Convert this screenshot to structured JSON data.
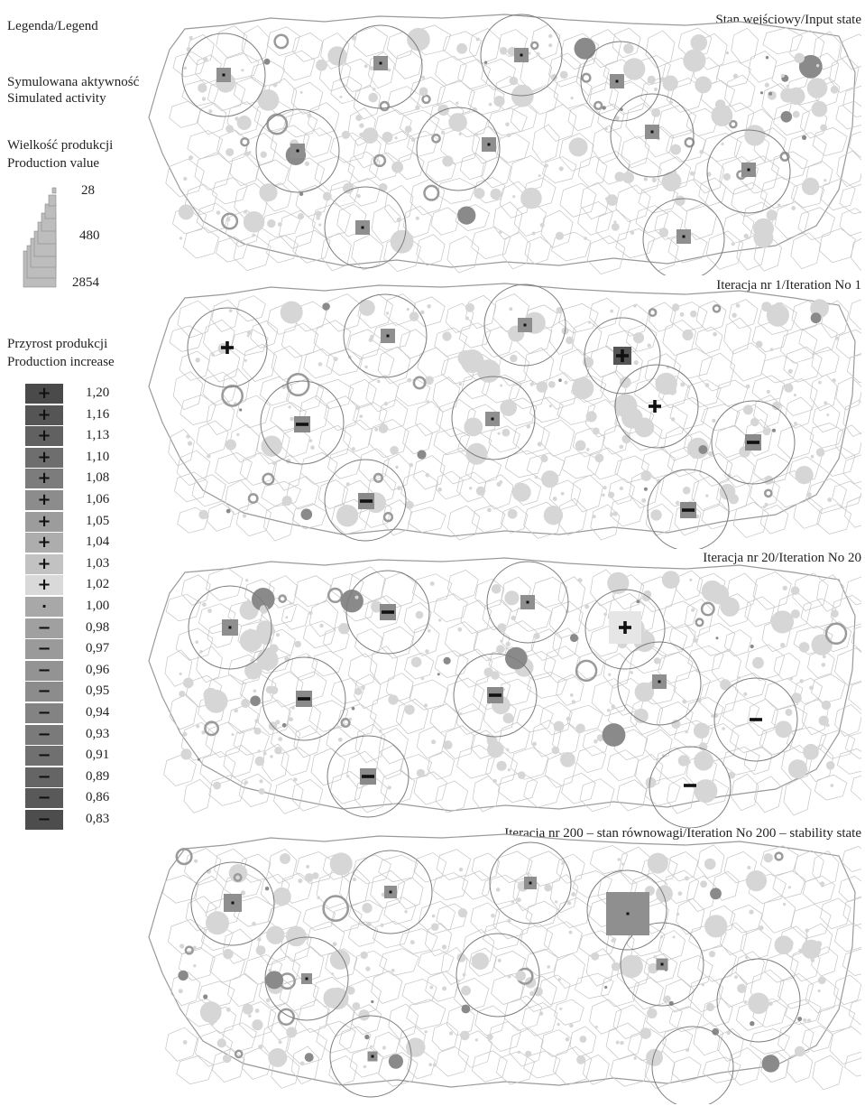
{
  "legend": {
    "title": "Legenda/Legend",
    "activity_pl": "Symulowana aktywność",
    "activity_en": "Simulated activity",
    "production_pl": "Wielkość produkcji",
    "production_en": "Production value",
    "production_values": [
      "28",
      "480",
      "2854"
    ],
    "increase_pl": "Przyrost produkcji",
    "increase_en": "Production increase",
    "increase_scale": [
      {
        "value": "1,20",
        "sign": "+",
        "shade": "#4a4a4a"
      },
      {
        "value": "1,16",
        "sign": "+",
        "shade": "#555555"
      },
      {
        "value": "1,13",
        "sign": "+",
        "shade": "#616161"
      },
      {
        "value": "1,10",
        "sign": "+",
        "shade": "#6e6e6e"
      },
      {
        "value": "1,08",
        "sign": "+",
        "shade": "#7c7c7c"
      },
      {
        "value": "1,06",
        "sign": "+",
        "shade": "#8c8c8c"
      },
      {
        "value": "1,05",
        "sign": "+",
        "shade": "#9c9c9c"
      },
      {
        "value": "1,04",
        "sign": "+",
        "shade": "#adadad"
      },
      {
        "value": "1,03",
        "sign": "+",
        "shade": "#c2c2c2"
      },
      {
        "value": "1,02",
        "sign": "+",
        "shade": "#d9d9d9"
      },
      {
        "value": "1,00",
        "sign": "·",
        "shade": "#a8a8a8"
      },
      {
        "value": "0,98",
        "sign": "−",
        "shade": "#a0a0a0"
      },
      {
        "value": "0,97",
        "sign": "−",
        "shade": "#9a9a9a"
      },
      {
        "value": "0,96",
        "sign": "−",
        "shade": "#939393"
      },
      {
        "value": "0,95",
        "sign": "−",
        "shade": "#8c8c8c"
      },
      {
        "value": "0,94",
        "sign": "−",
        "shade": "#838383"
      },
      {
        "value": "0,93",
        "sign": "−",
        "shade": "#7a7a7a"
      },
      {
        "value": "0,91",
        "sign": "−",
        "shade": "#707070"
      },
      {
        "value": "0,89",
        "sign": "−",
        "shade": "#656565"
      },
      {
        "value": "0,86",
        "sign": "−",
        "shade": "#595959"
      },
      {
        "value": "0,83",
        "sign": "−",
        "shade": "#4d4d4d"
      }
    ]
  },
  "panels": [
    {
      "title": "Stan wejściowy/Input state"
    },
    {
      "title": "Iteracja nr 1/Iteration No 1"
    },
    {
      "title": "Iteracja nr 20/Iteration No 20"
    },
    {
      "title": "Iteracja nr 200 – stan równowagi/Iteration No 200 – stability state"
    }
  ],
  "colors": {
    "outline": "#9a9a9a",
    "cell_line": "#c4c4c4",
    "dot": "#d6d6d6",
    "dark_dot": "#8a8a8a",
    "square": "#8f8f8f"
  }
}
